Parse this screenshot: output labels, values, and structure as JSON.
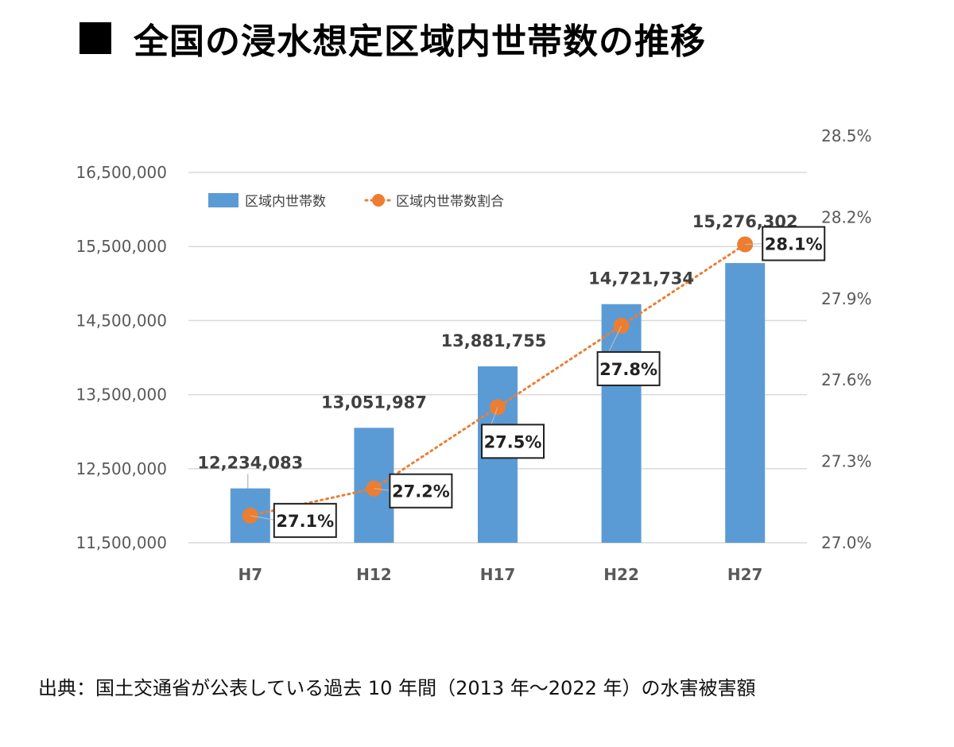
{
  "page": {
    "title_marker": "■",
    "title": "全国の浸水想定区域内世帯数の推移",
    "source": "出典：国土交通省が公表している過去 10 年間（2013 年～2022 年）の水害被害額"
  },
  "chart_data": {
    "type": "bar",
    "categories": [
      "H7",
      "H12",
      "H17",
      "H22",
      "H27"
    ],
    "series": [
      {
        "name": "区域内世帯数",
        "type": "bar",
        "axis": "left",
        "color": "#5B9BD5",
        "values": [
          12234083,
          13051987,
          13881755,
          14721734,
          15276302
        ],
        "labels": [
          "12,234,083",
          "13,051,987",
          "13,881,755",
          "14,721,734",
          "15,276,302"
        ]
      },
      {
        "name": "区域内世帯数割合",
        "type": "line",
        "line_style": "dotted",
        "axis": "right",
        "color": "#ED7D31",
        "values": [
          27.1,
          27.2,
          27.5,
          27.8,
          28.1
        ],
        "labels": [
          "27.1%",
          "27.2%",
          "27.5%",
          "27.8%",
          "28.1%"
        ]
      }
    ],
    "y_left": {
      "ylim": [
        11500000,
        16500000
      ],
      "ticks": [
        "11,500,000",
        "12,500,000",
        "13,500,000",
        "14,500,000",
        "15,500,000",
        "16,500,000"
      ]
    },
    "y_right": {
      "ylim": [
        27.0,
        28.5
      ],
      "ticks": [
        "27.0%",
        "27.3%",
        "27.6%",
        "27.9%",
        "28.2%",
        "28.5%"
      ]
    },
    "grid": true,
    "legend_position": "top-left"
  }
}
